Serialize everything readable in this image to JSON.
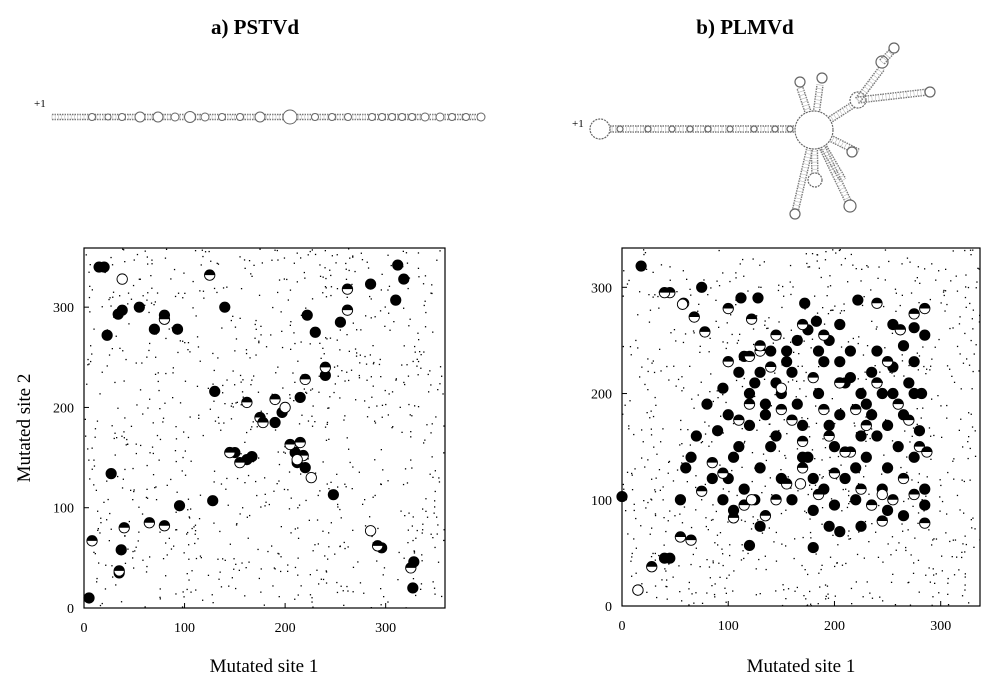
{
  "panels": [
    {
      "title": "a) PSTVd",
      "structure_label": "+1",
      "chart_data": {
        "type": "scatter",
        "title": "a) PSTVd",
        "xlabel": "Mutated site 1",
        "ylabel": "Mutated site 2",
        "xlim": [
          0,
          359
        ],
        "ylim": [
          0,
          359
        ],
        "xticks": [
          0,
          100,
          200,
          300
        ],
        "yticks": [
          0,
          100,
          200,
          300
        ],
        "grid": false,
        "background_note": "many small dots scattered uniformly across the plot area",
        "series": [
          {
            "marker": "filled-circle",
            "points": [
              [
                15,
                340
              ],
              [
                20,
                340
              ],
              [
                23,
                272
              ],
              [
                34,
                293
              ],
              [
                38,
                297
              ],
              [
                55,
                300
              ],
              [
                70,
                278
              ],
              [
                80,
                292
              ],
              [
                93,
                278
              ],
              [
                130,
                216
              ],
              [
                140,
                300
              ],
              [
                190,
                185
              ],
              [
                197,
                195
              ],
              [
                215,
                210
              ],
              [
                222,
                292
              ],
              [
                230,
                275
              ],
              [
                240,
                232
              ],
              [
                255,
                285
              ],
              [
                285,
                323
              ],
              [
                318,
                328
              ],
              [
                310,
                307
              ],
              [
                312,
                342
              ],
              [
                27,
                134
              ],
              [
                35,
                35
              ],
              [
                37,
                58
              ],
              [
                95,
                102
              ],
              [
                128,
                107
              ],
              [
                150,
                155
              ],
              [
                162,
                148
              ],
              [
                167,
                151
              ],
              [
                210,
                155
              ],
              [
                212,
                145
              ],
              [
                220,
                140
              ],
              [
                248,
                113
              ],
              [
                296,
                60
              ],
              [
                328,
                46
              ],
              [
                327,
                20
              ],
              [
                5,
                10
              ]
            ]
          },
          {
            "marker": "half-filled-circle",
            "points": [
              [
                125,
                332
              ],
              [
                80,
                288
              ],
              [
                175,
                190
              ],
              [
                190,
                208
              ],
              [
                220,
                228
              ],
              [
                240,
                240
              ],
              [
                262,
                318
              ],
              [
                262,
                297
              ],
              [
                205,
                163
              ],
              [
                215,
                165
              ],
              [
                218,
                152
              ],
              [
                145,
                155
              ],
              [
                155,
                145
              ],
              [
                162,
                205
              ],
              [
                178,
                185
              ],
              [
                65,
                85
              ],
              [
                80,
                82
              ],
              [
                40,
                80
              ],
              [
                35,
                37
              ],
              [
                8,
                67
              ],
              [
                292,
                62
              ],
              [
                325,
                40
              ]
            ]
          },
          {
            "marker": "open-circle",
            "points": [
              [
                38,
                328
              ],
              [
                200,
                200
              ],
              [
                226,
                130
              ],
              [
                285,
                77
              ],
              [
                212,
                148
              ]
            ]
          }
        ]
      }
    },
    {
      "title": "b) PLMVd",
      "structure_label": "+1",
      "chart_data": {
        "type": "scatter",
        "title": "b) PLMVd",
        "xlabel": "Mutated site 1",
        "ylabel": "",
        "xlim": [
          0,
          337
        ],
        "ylim": [
          0,
          337
        ],
        "xticks": [
          0,
          100,
          200,
          300
        ],
        "yticks": [
          0,
          100,
          200,
          300
        ],
        "grid": false,
        "background_note": "many small dots scattered uniformly across the plot area",
        "series": [
          {
            "marker": "filled-circle",
            "points": [
              [
                18,
                320
              ],
              [
                40,
                45
              ],
              [
                45,
                45
              ],
              [
                75,
                300
              ],
              [
                112,
                290
              ],
              [
                128,
                290
              ],
              [
                172,
                285
              ],
              [
                183,
                268
              ],
              [
                205,
                265
              ],
              [
                222,
                288
              ],
              [
                255,
                265
              ],
              [
                275,
                262
              ],
              [
                285,
                255
              ],
              [
                0,
                103
              ],
              [
                55,
                100
              ],
              [
                120,
                57
              ],
              [
                130,
                75
              ],
              [
                180,
                55
              ],
              [
                195,
                75
              ],
              [
                205,
                70
              ],
              [
                225,
                75
              ],
              [
                250,
                90
              ],
              [
                265,
                85
              ],
              [
                285,
                95
              ],
              [
                285,
                110
              ],
              [
                275,
                140
              ],
              [
                280,
                165
              ],
              [
                282,
                200
              ],
              [
                65,
                140
              ],
              [
                70,
                160
              ],
              [
                80,
                190
              ],
              [
                90,
                165
              ],
              [
                95,
                205
              ],
              [
                100,
                180
              ],
              [
                110,
                220
              ],
              [
                115,
                235
              ],
              [
                125,
                210
              ],
              [
                135,
                180
              ],
              [
                145,
                160
              ],
              [
                150,
                200
              ],
              [
                155,
                240
              ],
              [
                160,
                220
              ],
              [
                165,
                190
              ],
              [
                170,
                170
              ],
              [
                175,
                140
              ],
              [
                180,
                120
              ],
              [
                185,
                200
              ],
              [
                190,
                230
              ],
              [
                195,
                170
              ],
              [
                200,
                150
              ],
              [
                205,
                180
              ],
              [
                210,
                210
              ],
              [
                215,
                240
              ],
              [
                220,
                130
              ],
              [
                225,
                160
              ],
              [
                230,
                190
              ],
              [
                235,
                220
              ],
              [
                240,
                240
              ],
              [
                245,
                110
              ],
              [
                250,
                170
              ],
              [
                255,
                200
              ],
              [
                260,
                150
              ],
              [
                265,
                180
              ],
              [
                270,
                210
              ],
              [
                275,
                230
              ],
              [
                110,
                150
              ],
              [
                120,
                170
              ],
              [
                130,
                130
              ],
              [
                140,
                150
              ],
              [
                150,
                120
              ],
              [
                160,
                100
              ],
              [
                170,
                140
              ],
              [
                180,
                90
              ],
              [
                190,
                110
              ],
              [
                200,
                95
              ],
              [
                210,
                120
              ],
              [
                220,
                100
              ],
              [
                230,
                140
              ],
              [
                240,
                160
              ],
              [
                250,
                130
              ],
              [
                100,
                120
              ],
              [
                105,
                140
              ],
              [
                115,
                110
              ],
              [
                125,
                100
              ],
              [
                135,
                190
              ],
              [
                145,
                210
              ],
              [
                155,
                230
              ],
              [
                165,
                250
              ],
              [
                175,
                260
              ],
              [
                185,
                240
              ],
              [
                195,
                250
              ],
              [
                205,
                230
              ],
              [
                215,
                215
              ],
              [
                225,
                200
              ],
              [
                235,
                180
              ],
              [
                245,
                200
              ],
              [
                255,
                225
              ],
              [
                265,
                245
              ],
              [
                275,
                200
              ],
              [
                120,
                200
              ],
              [
                130,
                220
              ],
              [
                140,
                240
              ],
              [
                60,
                130
              ],
              [
                85,
                120
              ],
              [
                95,
                100
              ],
              [
                105,
                90
              ]
            ]
          },
          {
            "marker": "half-filled-circle",
            "points": [
              [
                58,
                285
              ],
              [
                68,
                272
              ],
              [
                78,
                258
              ],
              [
                100,
                280
              ],
              [
                122,
                270
              ],
              [
                145,
                255
              ],
              [
                170,
                265
              ],
              [
                190,
                255
              ],
              [
                240,
                285
              ],
              [
                262,
                260
              ],
              [
                275,
                275
              ],
              [
                285,
                280
              ],
              [
                45,
                295
              ],
              [
                40,
                295
              ],
              [
                15,
                15
              ],
              [
                28,
                37
              ],
              [
                55,
                65
              ],
              [
                65,
                62
              ],
              [
                75,
                108
              ],
              [
                105,
                83
              ],
              [
                115,
                95
              ],
              [
                135,
                85
              ],
              [
                145,
                100
              ],
              [
                155,
                115
              ],
              [
                170,
                130
              ],
              [
                185,
                105
              ],
              [
                195,
                160
              ],
              [
                205,
                210
              ],
              [
                215,
                145
              ],
              [
                225,
                110
              ],
              [
                235,
                95
              ],
              [
                245,
                80
              ],
              [
                255,
                100
              ],
              [
                265,
                120
              ],
              [
                85,
                135
              ],
              [
                95,
                125
              ],
              [
                110,
                175
              ],
              [
                120,
                190
              ],
              [
                130,
                240
              ],
              [
                140,
                225
              ],
              [
                150,
                185
              ],
              [
                160,
                175
              ],
              [
                170,
                155
              ],
              [
                180,
                215
              ],
              [
                190,
                185
              ],
              [
                200,
                125
              ],
              [
                210,
                145
              ],
              [
                220,
                185
              ],
              [
                230,
                170
              ],
              [
                240,
                210
              ],
              [
                250,
                230
              ],
              [
                260,
                190
              ],
              [
                270,
                175
              ],
              [
                280,
                150
              ],
              [
                287,
                145
              ],
              [
                285,
                78
              ],
              [
                275,
                105
              ],
              [
                130,
                245
              ],
              [
                100,
                230
              ],
              [
                120,
                235
              ]
            ]
          },
          {
            "marker": "open-circle",
            "points": [
              [
                57,
                284
              ],
              [
                150,
                205
              ],
              [
                122,
                100
              ],
              [
                168,
                115
              ],
              [
                245,
                105
              ],
              [
                15,
                15
              ]
            ]
          }
        ]
      }
    }
  ]
}
